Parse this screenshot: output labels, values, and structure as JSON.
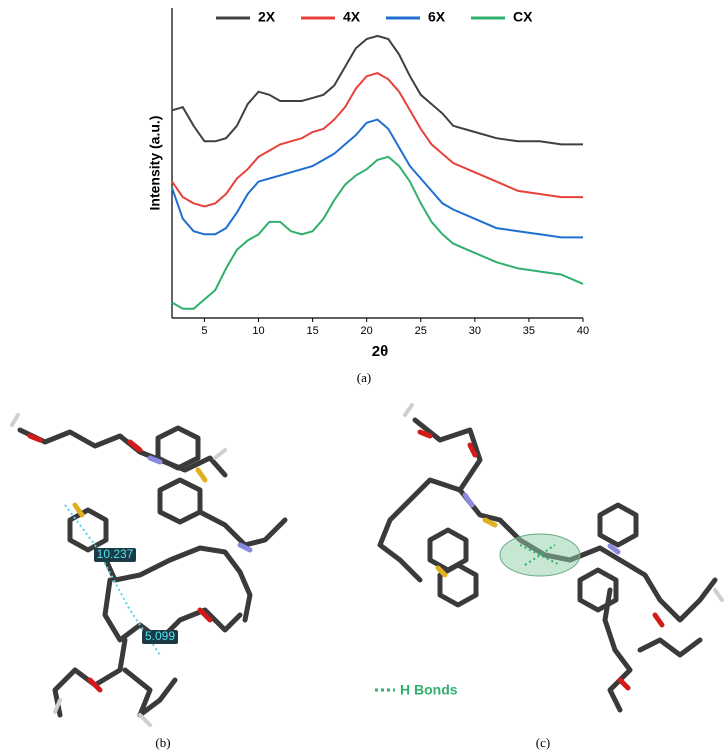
{
  "chart_data": {
    "type": "line",
    "xlabel": "2θ",
    "ylabel": "Intensity (a.u.)",
    "x": [
      2,
      3,
      4,
      5,
      6,
      7,
      8,
      9,
      10,
      11,
      12,
      13,
      14,
      15,
      16,
      17,
      18,
      19,
      20,
      21,
      22,
      23,
      24,
      25,
      26,
      27,
      28,
      30,
      32,
      34,
      36,
      38,
      40
    ],
    "xlim": [
      2,
      40
    ],
    "xticks": [
      5,
      10,
      15,
      20,
      25,
      30,
      35,
      40
    ],
    "ylim": [
      0,
      100
    ],
    "legend": "top",
    "series": [
      {
        "name": "2X",
        "color": "#404040",
        "values": [
          67,
          68,
          62,
          57,
          57,
          58,
          62,
          69,
          73,
          72,
          70,
          70,
          70,
          71,
          72,
          75,
          81,
          87,
          90,
          91,
          90,
          85,
          78,
          72,
          69,
          66,
          62,
          60,
          58,
          57,
          57,
          56,
          56
        ]
      },
      {
        "name": "4X",
        "color": "#e8413c",
        "values": [
          44,
          39,
          37,
          36,
          37,
          40,
          45,
          48,
          52,
          54,
          56,
          57,
          58,
          60,
          61,
          64,
          68,
          74,
          78,
          79,
          77,
          73,
          67,
          61,
          56,
          53,
          50,
          47,
          44,
          41,
          40,
          39,
          39
        ]
      },
      {
        "name": "6X",
        "color": "#1f6fd1",
        "values": [
          42,
          32,
          28,
          27,
          27,
          29,
          34,
          40,
          44,
          45,
          46,
          47,
          48,
          49,
          51,
          53,
          56,
          59,
          63,
          64,
          61,
          55,
          49,
          45,
          41,
          37,
          35,
          32,
          29,
          28,
          27,
          26,
          26
        ]
      },
      {
        "name": "CX",
        "color": "#2fb06e",
        "values": [
          5,
          3,
          3,
          6,
          9,
          16,
          22,
          25,
          27,
          31,
          31,
          28,
          27,
          28,
          32,
          38,
          43,
          46,
          48,
          51,
          52,
          49,
          44,
          37,
          31,
          27,
          24,
          21,
          18,
          16,
          15,
          14,
          11
        ]
      }
    ]
  },
  "captions": [
    "(a)",
    "(b)",
    "(c)"
  ],
  "annotations": {
    "distance_1": "10.237",
    "distance_2": "5.099",
    "hbond_legend": "H Bonds"
  }
}
